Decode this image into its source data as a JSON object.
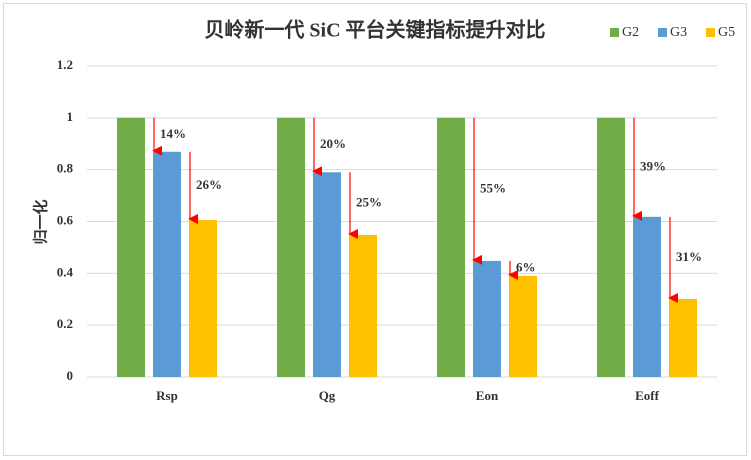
{
  "chart_data": {
    "type": "bar",
    "title": "贝岭新一代 SiC 平台关键指标提升对比",
    "y_label": "归一化",
    "categories": [
      "Rsp",
      "Qg",
      "Eon",
      "Eoff"
    ],
    "series": [
      {
        "name": "G2",
        "color": "#70ad47",
        "values": [
          1,
          1,
          1,
          1
        ]
      },
      {
        "name": "G3",
        "color": "#5b9bd5",
        "values": [
          0.869,
          0.79,
          0.448,
          0.618
        ]
      },
      {
        "name": "G5",
        "color": "#ffc000",
        "values": [
          0.606,
          0.548,
          0.39,
          0.301
        ]
      }
    ],
    "annotations": [
      [
        "14%",
        "26%"
      ],
      [
        "20%",
        "25%"
      ],
      [
        "55%",
        "6%"
      ],
      [
        "39%",
        "31%"
      ]
    ],
    "ylim": [
      0,
      1.2
    ],
    "yticks": [
      0,
      0.2,
      0.4,
      0.6,
      0.8,
      1,
      1.2
    ],
    "grid": true,
    "legend": "top-right"
  }
}
